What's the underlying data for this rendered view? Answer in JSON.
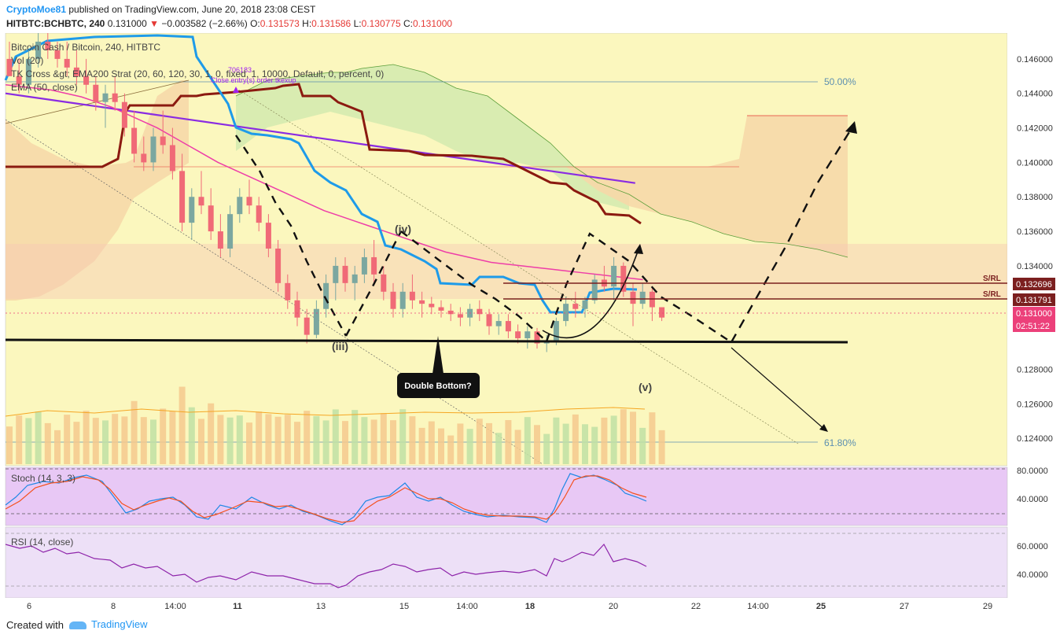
{
  "header": {
    "author": "CryptoMoe81",
    "published": "published on TradingView.com, June 20, 2018 23:08 CEST",
    "symbol": "HITBTC:BCHBTC, 240",
    "last": "0.131000",
    "change": "−0.003582 (−2.66%)",
    "ohlc": {
      "o_label": "O:",
      "o": "0.131573",
      "h_label": "H:",
      "h": "0.131586",
      "l_label": "L:",
      "l": "0.130775",
      "c_label": "C:",
      "c": "0.131000"
    }
  },
  "legend": {
    "title": "Bitcoin Cash / Bitcoin, 240, HITBTC",
    "vol": "Vol (20)",
    "tk": "TK Cross &gt; EMA200 Strat (20, 60, 120, 30, 1, 0, fixed, 1, 10000, Default, 0, percent, 0)",
    "ema": "EMA (50, close)",
    "strategy_value": "706183",
    "strategy_label": "Close entry(s) order tkexup"
  },
  "annotations": {
    "fib_50": "50.00%",
    "fib_618": "61.80%",
    "wave_iii": "(iii)",
    "wave_iv": "(iv)",
    "wave_v": "(v)",
    "callout": "Double Bottom?",
    "sr1": "S/RL",
    "sr2": "S/RL"
  },
  "price_axis": {
    "ticks": [
      "0.146000",
      "0.144000",
      "0.142000",
      "0.140000",
      "0.138000",
      "0.136000",
      "0.134000",
      "0.128000",
      "0.126000",
      "0.124000"
    ],
    "labels": [
      {
        "text": "0.132696",
        "bg": "#7b1f1f",
        "fg": "#ffffff"
      },
      {
        "text": "0.131791",
        "bg": "#7b1f1f",
        "fg": "#ffffff"
      },
      {
        "text": "0.131000",
        "bg": "#ec407a",
        "fg": "#ffffff"
      },
      {
        "text": "02:51:22",
        "bg": "#ec407a",
        "fg": "#ffffff"
      }
    ]
  },
  "stoch": {
    "title": "Stoch (14, 3, 3)",
    "ticks": [
      "80.0000",
      "40.0000"
    ]
  },
  "rsi": {
    "title": "RSI (14, close)",
    "ticks": [
      "60.0000",
      "40.0000"
    ]
  },
  "time_axis": [
    "6",
    "8",
    "14:00",
    "11",
    "13",
    "15",
    "14:00",
    "18",
    "20",
    "22",
    "14:00",
    "25",
    "27",
    "29"
  ],
  "footer": {
    "created": "Created with",
    "brand": "TradingView"
  },
  "colors": {
    "chart_bg": "#fbf7be",
    "up": "#7ba7a0",
    "down": "#f06a77",
    "tenkan": "#1e9be9",
    "kijun": "#8b1a10",
    "ema50": "#ee3ea8",
    "ema200": "#8a2be2",
    "cloud_green": "#d7ebb0",
    "cloud_orange": "#f6d8a8",
    "stoch_bg": "#e8c8f5",
    "rsi_bg": "#ede0f7"
  },
  "chart_data": {
    "type": "candlestick",
    "symbol": "HITBTC:BCHBTC",
    "timeframe": "240",
    "ylim": [
      0.1225,
      0.1475
    ],
    "x_ticks": [
      "6",
      "8",
      "14:00",
      "11",
      "13",
      "15",
      "14:00",
      "18",
      "20",
      "22",
      "14:00",
      "25",
      "27",
      "29"
    ],
    "candles": [
      [
        0.146,
        0.147,
        0.145,
        0.145
      ],
      [
        0.145,
        0.146,
        0.144,
        0.1445
      ],
      [
        0.1445,
        0.1465,
        0.144,
        0.146
      ],
      [
        0.146,
        0.1475,
        0.1455,
        0.147
      ],
      [
        0.147,
        0.1475,
        0.146,
        0.1465
      ],
      [
        0.1465,
        0.147,
        0.1455,
        0.146
      ],
      [
        0.146,
        0.147,
        0.145,
        0.1455
      ],
      [
        0.1455,
        0.1465,
        0.1445,
        0.145
      ],
      [
        0.145,
        0.146,
        0.144,
        0.1445
      ],
      [
        0.1445,
        0.145,
        0.143,
        0.1435
      ],
      [
        0.1435,
        0.1445,
        0.142,
        0.144
      ],
      [
        0.144,
        0.145,
        0.143,
        0.1435
      ],
      [
        0.1435,
        0.144,
        0.1415,
        0.142
      ],
      [
        0.142,
        0.143,
        0.14,
        0.1405
      ],
      [
        0.1405,
        0.1415,
        0.1395,
        0.14
      ],
      [
        0.14,
        0.142,
        0.1395,
        0.1415
      ],
      [
        0.1415,
        0.143,
        0.1405,
        0.141
      ],
      [
        0.141,
        0.142,
        0.139,
        0.1395
      ],
      [
        0.1395,
        0.1405,
        0.136,
        0.1365
      ],
      [
        0.1365,
        0.1385,
        0.1355,
        0.138
      ],
      [
        0.138,
        0.1395,
        0.137,
        0.1375
      ],
      [
        0.1375,
        0.1385,
        0.1355,
        0.136
      ],
      [
        0.136,
        0.137,
        0.1345,
        0.135
      ],
      [
        0.135,
        0.1375,
        0.1345,
        0.137
      ],
      [
        0.137,
        0.1385,
        0.1365,
        0.138
      ],
      [
        0.138,
        0.139,
        0.137,
        0.1375
      ],
      [
        0.1375,
        0.138,
        0.136,
        0.1365
      ],
      [
        0.1365,
        0.137,
        0.1345,
        0.135
      ],
      [
        0.135,
        0.1355,
        0.1325,
        0.133
      ],
      [
        0.133,
        0.1335,
        0.1315,
        0.132
      ],
      [
        0.132,
        0.1325,
        0.1305,
        0.131
      ],
      [
        0.131,
        0.1315,
        0.1295,
        0.13
      ],
      [
        0.13,
        0.132,
        0.1298,
        0.1315
      ],
      [
        0.1315,
        0.1335,
        0.131,
        0.133
      ],
      [
        0.133,
        0.1345,
        0.132,
        0.134
      ],
      [
        0.134,
        0.1345,
        0.1325,
        0.133
      ],
      [
        0.133,
        0.134,
        0.132,
        0.1335
      ],
      [
        0.1335,
        0.135,
        0.133,
        0.1345
      ],
      [
        0.1345,
        0.1355,
        0.133,
        0.1335
      ],
      [
        0.1335,
        0.134,
        0.132,
        0.1325
      ],
      [
        0.1325,
        0.133,
        0.131,
        0.1315
      ],
      [
        0.1315,
        0.133,
        0.131,
        0.1325
      ],
      [
        0.1325,
        0.1335,
        0.1315,
        0.132
      ],
      [
        0.132,
        0.1325,
        0.131,
        0.1318
      ],
      [
        0.1318,
        0.1322,
        0.1312,
        0.1316
      ],
      [
        0.1316,
        0.132,
        0.131,
        0.1314
      ],
      [
        0.1314,
        0.1318,
        0.1308,
        0.1312
      ],
      [
        0.1312,
        0.1316,
        0.1305,
        0.131
      ],
      [
        0.131,
        0.1318,
        0.1305,
        0.1315
      ],
      [
        0.1315,
        0.132,
        0.1308,
        0.1312
      ],
      [
        0.1312,
        0.1315,
        0.13,
        0.1305
      ],
      [
        0.1305,
        0.1312,
        0.13,
        0.1308
      ],
      [
        0.1308,
        0.1312,
        0.1298,
        0.1302
      ],
      [
        0.1302,
        0.1306,
        0.1295,
        0.1298
      ],
      [
        0.1298,
        0.1305,
        0.1292,
        0.1302
      ],
      [
        0.1302,
        0.1304,
        0.1292,
        0.1295
      ],
      [
        0.1295,
        0.13,
        0.129,
        0.1296
      ],
      [
        0.1296,
        0.131,
        0.1294,
        0.1308
      ],
      [
        0.1308,
        0.1322,
        0.1305,
        0.1318
      ],
      [
        0.1318,
        0.1325,
        0.131,
        0.1315
      ],
      [
        0.1315,
        0.1322,
        0.131,
        0.132
      ],
      [
        0.132,
        0.1335,
        0.1318,
        0.1332
      ],
      [
        0.1332,
        0.134,
        0.1325,
        0.1328
      ],
      [
        0.1328,
        0.1345,
        0.132,
        0.134
      ],
      [
        0.134,
        0.1342,
        0.1322,
        0.1325
      ],
      [
        0.1325,
        0.133,
        0.1305,
        0.1318
      ],
      [
        0.1318,
        0.133,
        0.1315,
        0.1325
      ],
      [
        0.1325,
        0.1328,
        0.1308,
        0.1316
      ],
      [
        0.1316,
        0.1316,
        0.1308,
        0.131
      ]
    ],
    "series": [
      {
        "name": "EMA (50, close)",
        "values": [
          0.1445,
          0.1444,
          0.1443,
          0.1442,
          0.144,
          0.1438,
          0.1435,
          0.1432,
          0.1428,
          0.1424,
          0.142,
          0.1415,
          0.141,
          0.1405,
          0.14,
          0.1396,
          0.1392,
          0.1388,
          0.1384,
          0.138,
          0.1376,
          0.1372,
          0.1369,
          0.1366,
          0.1363,
          0.136,
          0.1357,
          0.1354,
          0.1351,
          0.1348,
          0.1346,
          0.1344,
          0.1342,
          0.1341,
          0.134,
          0.1339,
          0.1338,
          0.1337,
          0.1336,
          0.1335,
          0.1334,
          0.1333,
          0.1332
        ]
      },
      {
        "name": "EMA200",
        "values": [
          0.144,
          0.1438,
          0.1436,
          0.1434,
          0.1432,
          0.143,
          0.1428,
          0.1426,
          0.1424,
          0.1422,
          0.142,
          0.1418,
          0.1416,
          0.1414,
          0.1412,
          0.141,
          0.1408,
          0.1406,
          0.1404,
          0.1402,
          0.14,
          0.1398,
          0.1396,
          0.1394,
          0.1392,
          0.139,
          0.1388
        ]
      }
    ],
    "fib_levels": [
      {
        "label": "50.00%",
        "price": 0.1465
      },
      {
        "label": "61.80%",
        "price": 0.1233
      }
    ],
    "sr_levels": [
      0.132696,
      0.131791
    ]
  }
}
